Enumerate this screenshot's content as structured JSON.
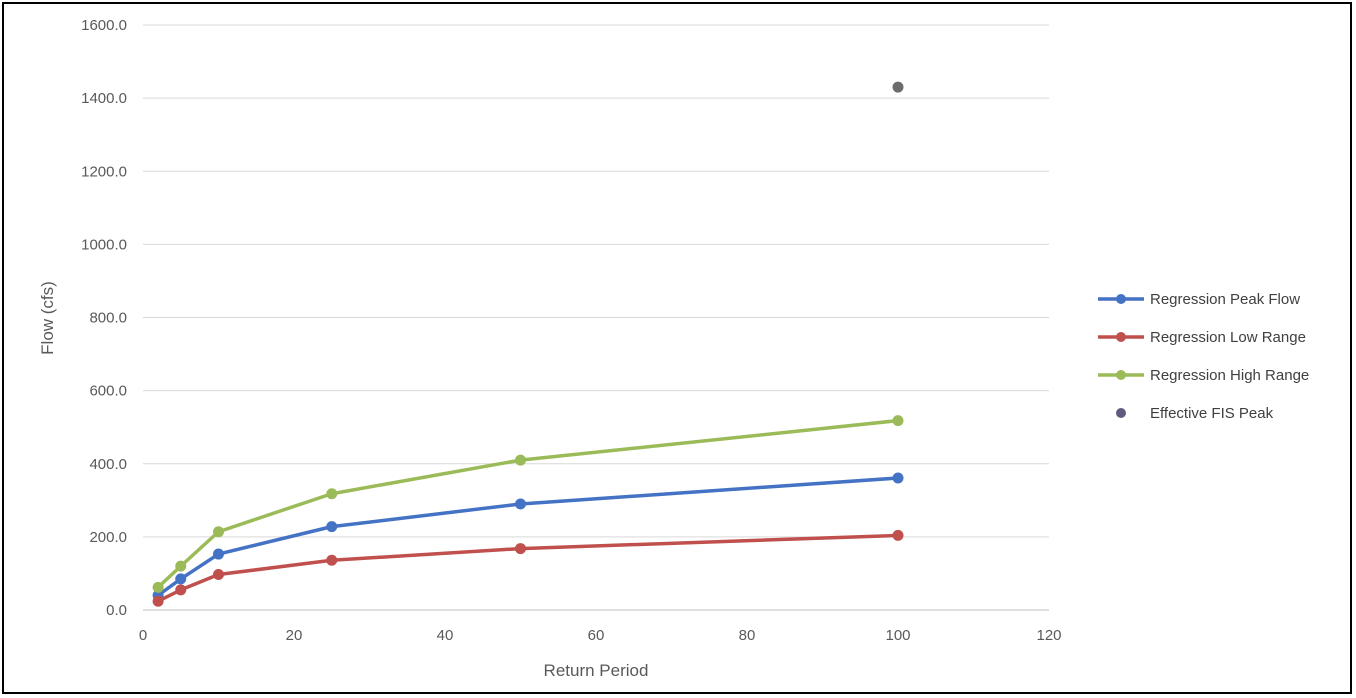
{
  "chart_data": {
    "type": "scatter",
    "title": "",
    "xlabel": "Return Period",
    "ylabel": "Flow (cfs)",
    "xlim": [
      0,
      120
    ],
    "ylim": [
      0,
      1600
    ],
    "xticks": [
      0,
      20,
      40,
      60,
      80,
      100,
      120
    ],
    "yticks": [
      0,
      200,
      400,
      600,
      800,
      1000,
      1200,
      1400,
      1600
    ],
    "ytick_labels": [
      "0.0",
      "200.0",
      "400.0",
      "600.0",
      "800.0",
      "1000.0",
      "1200.0",
      "1400.0",
      "1600.0"
    ],
    "grid": "horizontal",
    "legend_position": "right",
    "series": [
      {
        "name": "Regression Peak Flow",
        "color": "#4472C4",
        "lines": true,
        "x": [
          2,
          5,
          10,
          25,
          50,
          100
        ],
        "y": [
          40,
          85,
          153,
          228,
          290,
          361
        ]
      },
      {
        "name": "Regression Low Range",
        "color": "#C0504D",
        "lines": true,
        "x": [
          2,
          5,
          10,
          25,
          50,
          100
        ],
        "y": [
          24,
          55,
          97,
          136,
          168,
          204
        ]
      },
      {
        "name": "Regression High Range",
        "color": "#9BBB59",
        "lines": true,
        "x": [
          2,
          5,
          10,
          25,
          50,
          100
        ],
        "y": [
          62,
          120,
          214,
          318,
          410,
          518
        ]
      },
      {
        "name": "Effective FIS Peak",
        "color": "#6C6C6C",
        "legend_color": "#5F5B7F",
        "lines": false,
        "x": [
          100
        ],
        "y": [
          1430
        ]
      }
    ]
  }
}
